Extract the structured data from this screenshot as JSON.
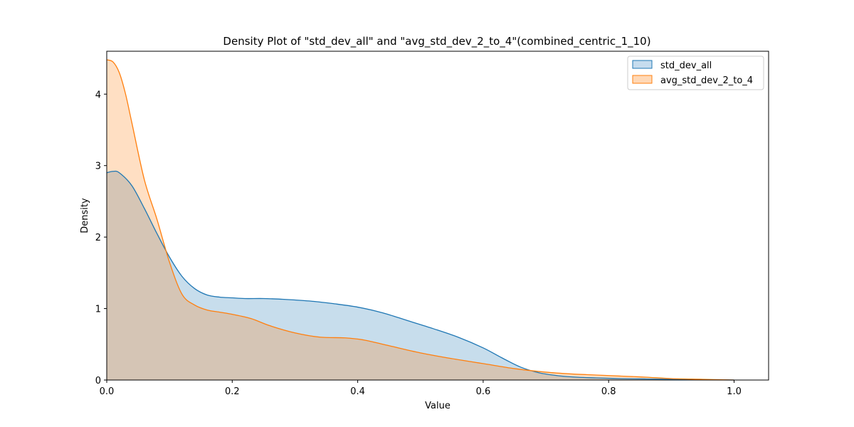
{
  "chart_data": {
    "type": "area",
    "title": "Density Plot of \"std_dev_all\" and \"avg_std_dev_2_to_4\"(combined_centric_1_10)",
    "xlabel": "Value",
    "ylabel": "Density",
    "xlim": [
      0.0,
      1.055
    ],
    "ylim": [
      0,
      4.6
    ],
    "xticks": [
      "0.0",
      "0.2",
      "0.4",
      "0.6",
      "0.8",
      "1.0"
    ],
    "yticks": [
      "0",
      "1",
      "2",
      "3",
      "4"
    ],
    "grid": false,
    "legend_position": "top-right",
    "series": [
      {
        "name": "std_dev_all",
        "color": "#1f77b4",
        "fill": "#c6dcee",
        "x": [
          0.0,
          0.01,
          0.02,
          0.04,
          0.06,
          0.08,
          0.1,
          0.12,
          0.14,
          0.16,
          0.18,
          0.2,
          0.22,
          0.25,
          0.28,
          0.3,
          0.33,
          0.36,
          0.4,
          0.44,
          0.48,
          0.52,
          0.56,
          0.6,
          0.63,
          0.66,
          0.69,
          0.72,
          0.75,
          0.78,
          0.82,
          0.86,
          0.9,
          0.95,
          1.0
        ],
        "y": [
          2.9,
          2.92,
          2.9,
          2.72,
          2.4,
          2.05,
          1.72,
          1.45,
          1.28,
          1.19,
          1.16,
          1.15,
          1.14,
          1.14,
          1.13,
          1.12,
          1.1,
          1.07,
          1.02,
          0.94,
          0.83,
          0.72,
          0.6,
          0.45,
          0.31,
          0.18,
          0.1,
          0.06,
          0.04,
          0.03,
          0.02,
          0.015,
          0.01,
          0.005,
          0.0
        ]
      },
      {
        "name": "avg_std_dev_2_to_4",
        "color": "#ff7f0e",
        "fill": "#ffd8b6",
        "x": [
          0.0,
          0.01,
          0.02,
          0.03,
          0.04,
          0.06,
          0.08,
          0.1,
          0.12,
          0.14,
          0.16,
          0.18,
          0.2,
          0.23,
          0.26,
          0.3,
          0.34,
          0.38,
          0.41,
          0.45,
          0.5,
          0.55,
          0.6,
          0.65,
          0.7,
          0.74,
          0.78,
          0.82,
          0.86,
          0.9,
          0.95,
          1.0
        ],
        "y": [
          4.48,
          4.45,
          4.3,
          4.0,
          3.6,
          2.8,
          2.25,
          1.65,
          1.2,
          1.05,
          0.98,
          0.95,
          0.92,
          0.86,
          0.76,
          0.66,
          0.6,
          0.59,
          0.56,
          0.48,
          0.38,
          0.3,
          0.23,
          0.16,
          0.11,
          0.085,
          0.07,
          0.055,
          0.04,
          0.02,
          0.01,
          0.0
        ]
      }
    ]
  }
}
